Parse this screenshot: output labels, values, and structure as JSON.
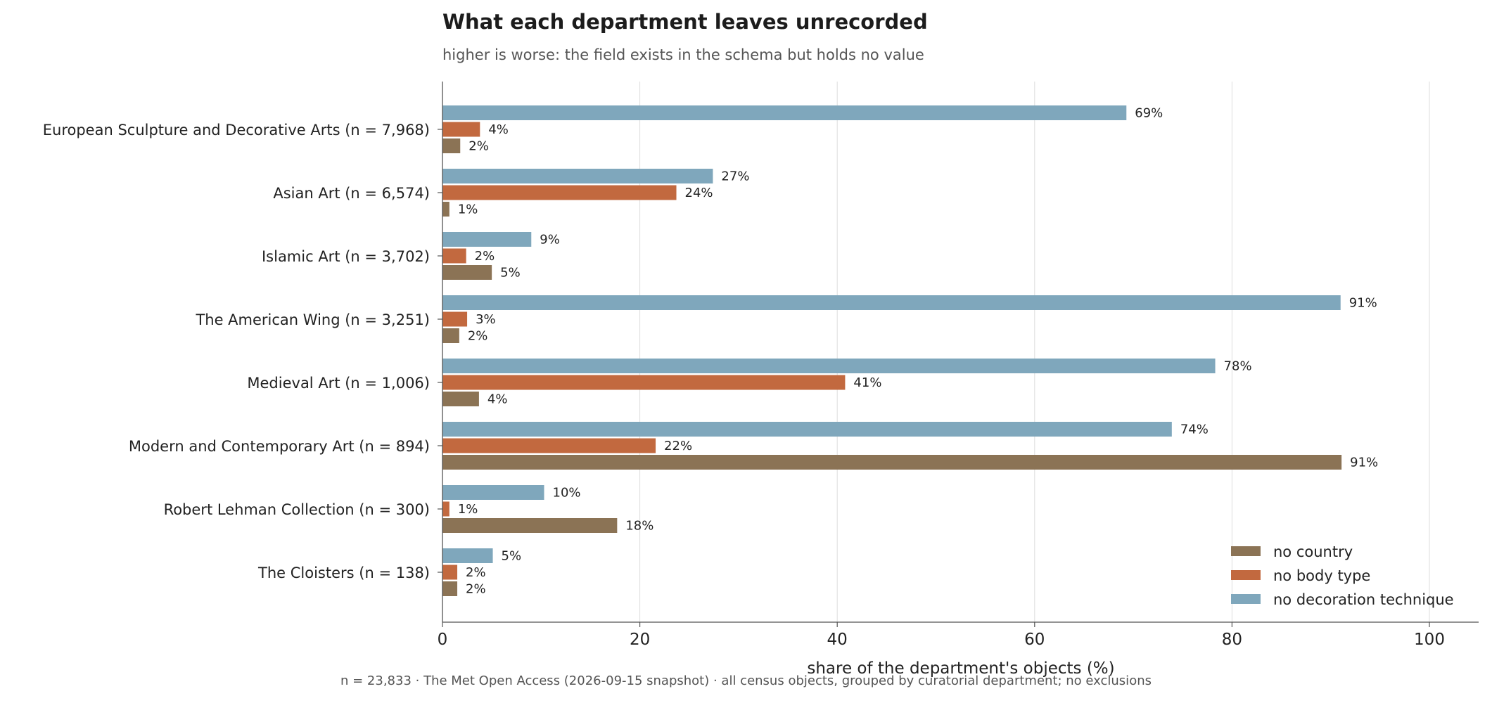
{
  "chart_data": {
    "type": "bar",
    "orientation": "horizontal",
    "title": "What each department leaves unrecorded",
    "subtitle": "higher is worse: the field exists in the schema but holds no value",
    "xlabel": "share of the department's objects (%)",
    "ylabel": "",
    "xlim": [
      0,
      105
    ],
    "xticks": [
      "0",
      "20",
      "40",
      "60",
      "80",
      "100"
    ],
    "grid": true,
    "legend_position": "bottom-right",
    "value_suffix": "%",
    "categories": [
      "European Sculpture and Decorative Arts  (n = 7,968)",
      "Asian Art  (n = 6,574)",
      "Islamic Art  (n = 3,702)",
      "The American Wing  (n = 3,251)",
      "Medieval Art  (n = 1,006)",
      "Modern and Contemporary Art  (n = 894)",
      "Robert Lehman Collection  (n = 300)",
      "The Cloisters  (n = 138)"
    ],
    "series": [
      {
        "name": "no decoration technique",
        "color": "#7fa7bc",
        "values": [
          69.3,
          27.4,
          9.0,
          91.0,
          78.3,
          73.9,
          10.3,
          5.1
        ]
      },
      {
        "name": "no body type",
        "color": "#c2693f",
        "values": [
          3.8,
          23.7,
          2.4,
          2.5,
          40.8,
          21.6,
          0.7,
          1.5
        ]
      },
      {
        "name": "no country",
        "color": "#8b7355",
        "values": [
          1.8,
          0.7,
          5.0,
          1.7,
          3.7,
          91.1,
          17.7,
          1.5
        ]
      }
    ],
    "legend_order": [
      "no country",
      "no body type",
      "no decoration technique"
    ],
    "footer": "n = 23,833 · The Met Open Access (2026-09-15 snapshot) · all census objects, grouped by curatorial department; no exclusions"
  }
}
